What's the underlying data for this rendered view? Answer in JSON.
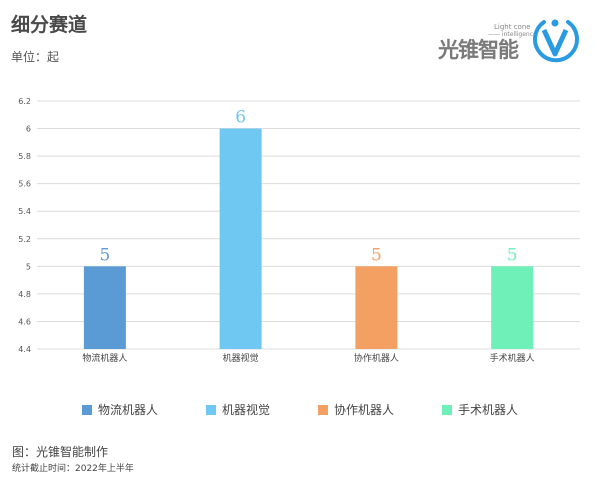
{
  "header": {
    "title": "细分赛道",
    "unit": "单位：起"
  },
  "logo": {
    "text": "光锥智能",
    "sub1": "Light cone",
    "sub2": "—— intelligence",
    "icon": "v-letter-circle-icon",
    "color": "#2a9be0"
  },
  "chart_data": {
    "type": "bar",
    "categories": [
      "物流机器人",
      "机器视觉",
      "协作机器人",
      "手术机器人"
    ],
    "values": [
      5,
      6,
      5,
      5
    ],
    "colors": [
      "#5b9bd5",
      "#6ec8f2",
      "#f4a062",
      "#6ef0b8"
    ],
    "ylim": [
      4.4,
      6.2
    ],
    "yticks": [
      "4.4",
      "4.6",
      "4.8",
      "5",
      "5.2",
      "5.4",
      "5.6",
      "5.8",
      "6",
      "6.2"
    ],
    "grid": true,
    "legend_position": "bottom"
  },
  "footer": {
    "source": "图：光锥智能制作",
    "date": "统计截止时间：2022年上半年"
  }
}
